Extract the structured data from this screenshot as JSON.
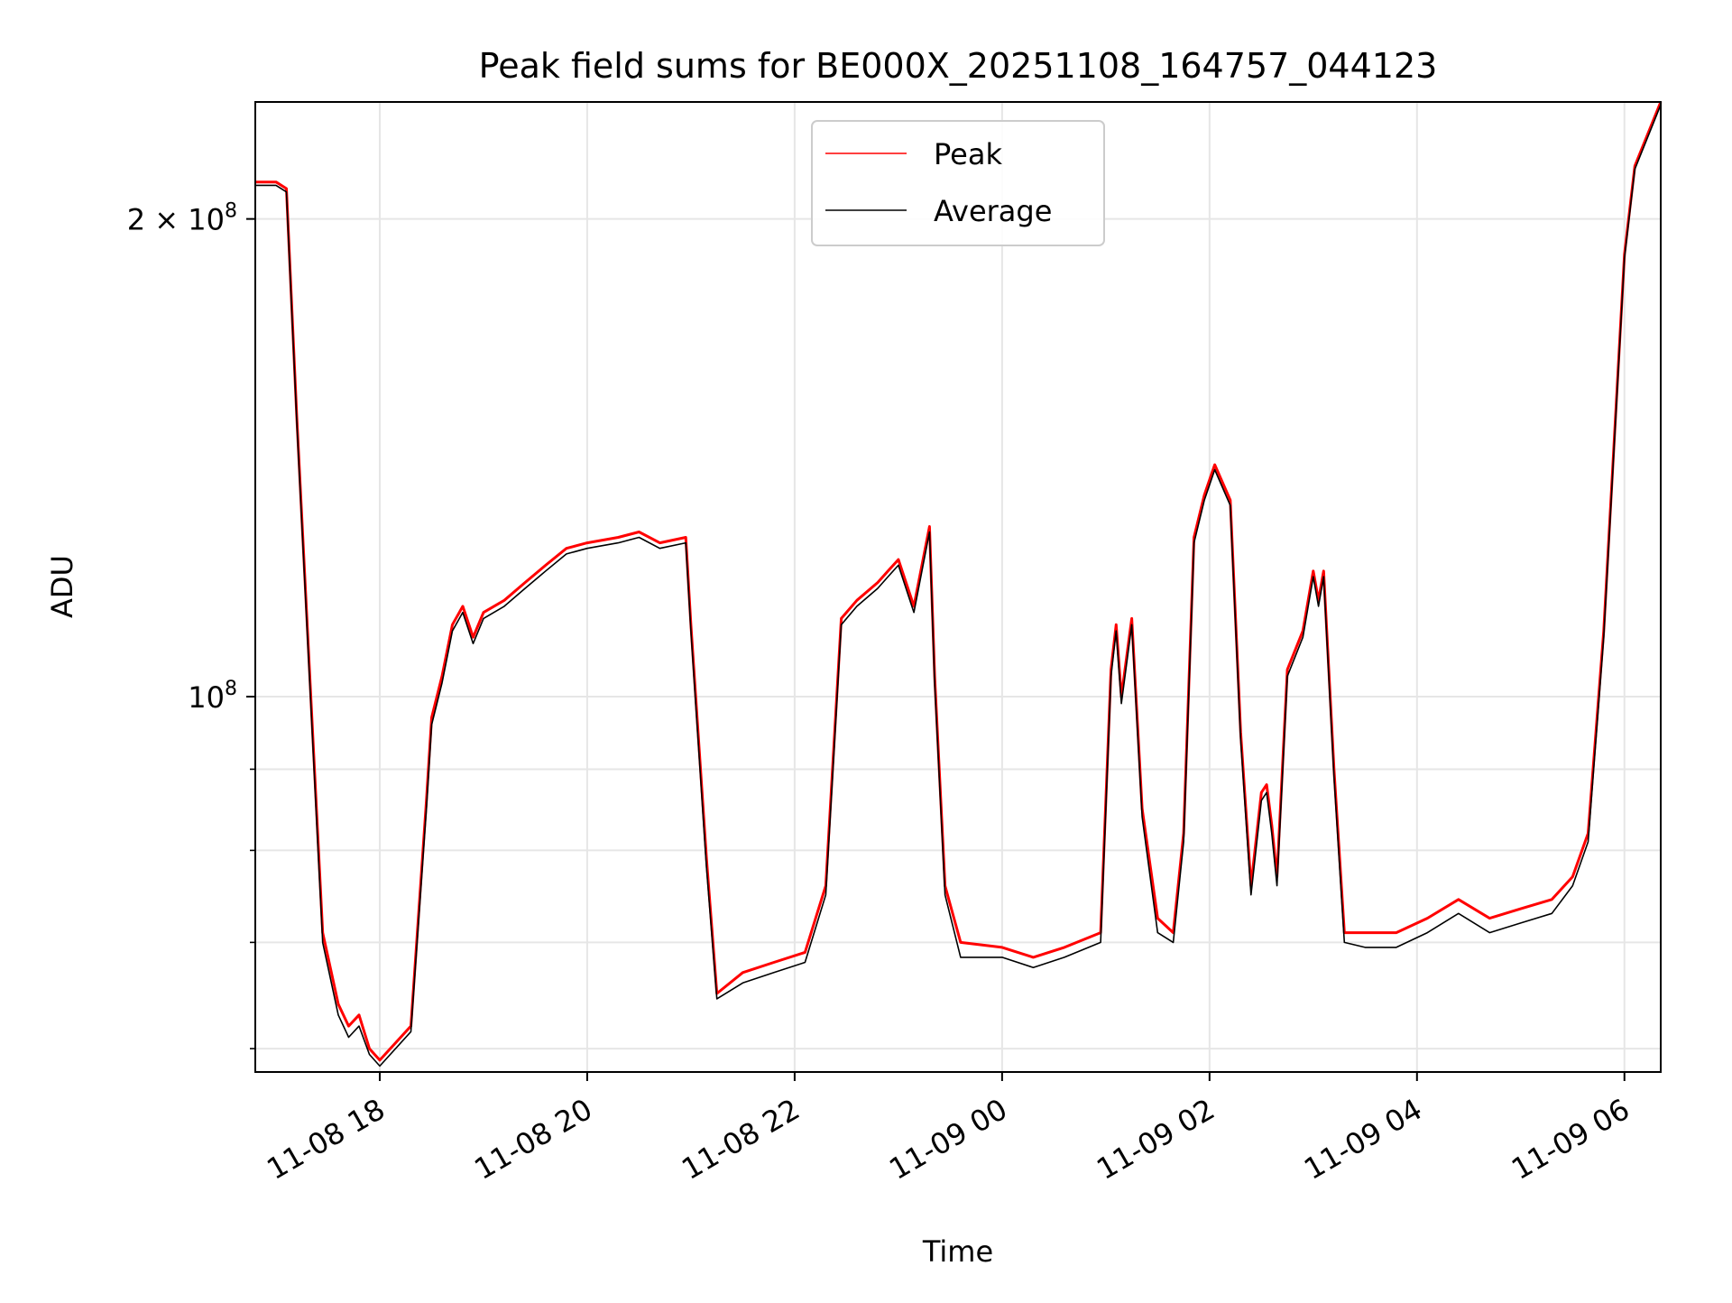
{
  "chart_data": {
    "type": "line",
    "title": "Peak field sums for BE000X_20251108_164757_044123",
    "xlabel": "Time",
    "ylabel": "ADU",
    "x_unit": "hours since 2025-11-08 00:00",
    "xlim": [
      16.8,
      30.35
    ],
    "ylim": [
      58000000,
      237000000
    ],
    "yscale": "log",
    "grid": true,
    "legend_position": "top-center",
    "x_ticks": [
      {
        "value": 18,
        "label": "11-08 18"
      },
      {
        "value": 20,
        "label": "11-08 20"
      },
      {
        "value": 22,
        "label": "11-08 22"
      },
      {
        "value": 24,
        "label": "11-09 00"
      },
      {
        "value": 26,
        "label": "11-09 02"
      },
      {
        "value": 28,
        "label": "11-09 04"
      },
      {
        "value": 30,
        "label": "11-09 06"
      }
    ],
    "y_major_ticks": [
      {
        "value": 100000000,
        "label": "10",
        "exponent": "8"
      },
      {
        "value": 200000000,
        "label": "2 × 10",
        "exponent": "8"
      }
    ],
    "y_minor_ticks": [
      60000000,
      70000000,
      80000000,
      90000000
    ],
    "series": [
      {
        "name": "Peak",
        "color": "#ff0000",
        "x": [
          16.8,
          17.0,
          17.1,
          17.2,
          17.45,
          17.6,
          17.7,
          17.8,
          17.9,
          18.0,
          18.3,
          18.45,
          18.5,
          18.6,
          18.7,
          18.8,
          18.9,
          19.0,
          19.2,
          19.4,
          19.6,
          19.8,
          20.0,
          20.3,
          20.5,
          20.7,
          20.95,
          21.0,
          21.15,
          21.25,
          21.5,
          21.8,
          22.1,
          22.3,
          22.45,
          22.6,
          22.8,
          22.9,
          23.0,
          23.15,
          23.3,
          23.35,
          23.45,
          23.6,
          24.0,
          24.3,
          24.6,
          24.95,
          25.05,
          25.1,
          25.15,
          25.25,
          25.35,
          25.5,
          25.65,
          25.75,
          25.85,
          25.95,
          26.05,
          26.2,
          26.3,
          26.4,
          26.5,
          26.55,
          26.6,
          26.65,
          26.75,
          26.9,
          27.0,
          27.05,
          27.1,
          27.2,
          27.3,
          27.5,
          27.8,
          28.1,
          28.4,
          28.7,
          29.0,
          29.3,
          29.5,
          29.65,
          29.8,
          30.0,
          30.1,
          30.35
        ],
        "values": [
          211000000,
          211000000,
          209000000,
          150000000,
          71000000,
          64000000,
          62000000,
          63000000,
          60000000,
          59000000,
          62000000,
          86000000,
          97000000,
          103000000,
          111000000,
          114000000,
          109000000,
          113000000,
          115000000,
          118000000,
          121000000,
          124000000,
          125000000,
          126000000,
          127000000,
          125000000,
          126000000,
          111000000,
          79000000,
          65000000,
          67000000,
          68000000,
          69000000,
          76000000,
          112000000,
          115000000,
          118000000,
          120000000,
          122000000,
          114000000,
          128000000,
          103000000,
          76000000,
          70000000,
          69500000,
          68500000,
          69500000,
          71000000,
          104000000,
          111000000,
          100000000,
          112000000,
          85000000,
          72500000,
          71000000,
          82000000,
          126000000,
          134000000,
          140000000,
          133000000,
          95000000,
          76000000,
          87000000,
          88000000,
          83000000,
          77000000,
          104000000,
          110000000,
          120000000,
          115000000,
          120000000,
          90000000,
          71000000,
          71000000,
          71000000,
          72500000,
          74500000,
          72500000,
          73500000,
          74500000,
          77000000,
          82000000,
          110000000,
          190000000,
          216000000,
          237000000
        ]
      },
      {
        "name": "Average",
        "color": "#000000",
        "x": [
          16.8,
          17.0,
          17.1,
          17.2,
          17.45,
          17.6,
          17.7,
          17.8,
          17.9,
          18.0,
          18.3,
          18.45,
          18.5,
          18.6,
          18.7,
          18.8,
          18.9,
          19.0,
          19.2,
          19.4,
          19.6,
          19.8,
          20.0,
          20.3,
          20.5,
          20.7,
          20.95,
          21.0,
          21.15,
          21.25,
          21.5,
          21.8,
          22.1,
          22.3,
          22.45,
          22.6,
          22.8,
          22.9,
          23.0,
          23.15,
          23.3,
          23.35,
          23.45,
          23.6,
          24.0,
          24.3,
          24.6,
          24.95,
          25.05,
          25.1,
          25.15,
          25.25,
          25.35,
          25.5,
          25.65,
          25.75,
          25.85,
          25.95,
          26.05,
          26.2,
          26.3,
          26.4,
          26.5,
          26.55,
          26.6,
          26.65,
          26.75,
          26.9,
          27.0,
          27.05,
          27.1,
          27.2,
          27.3,
          27.5,
          27.8,
          28.1,
          28.4,
          28.7,
          29.0,
          29.3,
          29.5,
          29.65,
          29.8,
          30.0,
          30.1,
          30.35
        ],
        "values": [
          210000000,
          210000000,
          208000000,
          149000000,
          70000000,
          63000000,
          61000000,
          62000000,
          59500000,
          58500000,
          61500000,
          85000000,
          96000000,
          102000000,
          110000000,
          113000000,
          108000000,
          112000000,
          114000000,
          117000000,
          120000000,
          123000000,
          124000000,
          125000000,
          126000000,
          124000000,
          125000000,
          110000000,
          78000000,
          64500000,
          66000000,
          67000000,
          68000000,
          75000000,
          111000000,
          114000000,
          117000000,
          119000000,
          121000000,
          113000000,
          127000000,
          102000000,
          75000000,
          68500000,
          68500000,
          67500000,
          68500000,
          70000000,
          103000000,
          110000000,
          99000000,
          111000000,
          84000000,
          71000000,
          70000000,
          81000000,
          125000000,
          133000000,
          139000000,
          132000000,
          94000000,
          75000000,
          86000000,
          87000000,
          82000000,
          76000000,
          103000000,
          109000000,
          119000000,
          114000000,
          119000000,
          89000000,
          70000000,
          69500000,
          69500000,
          71000000,
          73000000,
          71000000,
          72000000,
          73000000,
          76000000,
          81000000,
          109000000,
          189000000,
          215000000,
          236000000
        ]
      }
    ]
  }
}
